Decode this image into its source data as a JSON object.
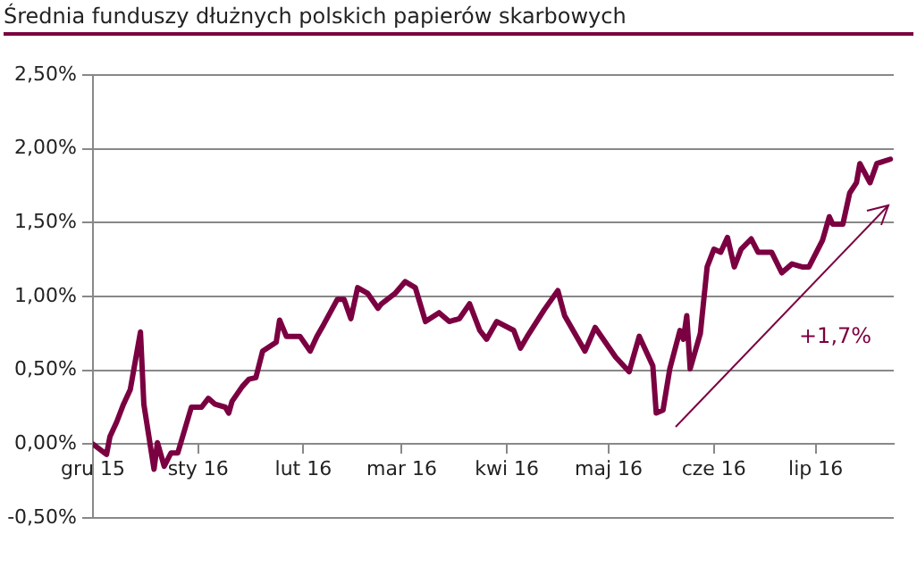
{
  "chart_data": {
    "type": "line",
    "title": "Średnia funduszy dłużnych polskich papierów skarbowych",
    "x": [
      "2015-12-01",
      "2015-12-05",
      "2015-12-06",
      "2015-12-08",
      "2015-12-10",
      "2015-12-12",
      "2015-12-15",
      "2015-12-16",
      "2015-12-19",
      "2015-12-20",
      "2015-12-22",
      "2015-12-24",
      "2015-12-26",
      "2015-12-30",
      "2016-01-02",
      "2016-01-04",
      "2016-01-06",
      "2016-01-09",
      "2016-01-10",
      "2016-01-11",
      "2016-01-14",
      "2016-01-16",
      "2016-01-18",
      "2016-01-20",
      "2016-01-24",
      "2016-01-25",
      "2016-01-27",
      "2016-01-31",
      "2016-02-03",
      "2016-02-05",
      "2016-02-07",
      "2016-02-11",
      "2016-02-13",
      "2016-02-15",
      "2016-02-17",
      "2016-02-20",
      "2016-02-23",
      "2016-02-24",
      "2016-02-28",
      "2016-03-02",
      "2016-03-05",
      "2016-03-08",
      "2016-03-12",
      "2016-03-15",
      "2016-03-18",
      "2016-03-21",
      "2016-03-24",
      "2016-03-26",
      "2016-03-29",
      "2016-04-03",
      "2016-04-05",
      "2016-04-07",
      "2016-04-12",
      "2016-04-16",
      "2016-04-18",
      "2016-04-24",
      "2016-04-27",
      "2016-05-03",
      "2016-05-07",
      "2016-05-10",
      "2016-05-14",
      "2016-05-15",
      "2016-05-17",
      "2016-05-19",
      "2016-05-22",
      "2016-05-23",
      "2016-05-24",
      "2016-05-25",
      "2016-05-28",
      "2016-05-30",
      "2016-06-01",
      "2016-06-03",
      "2016-06-05",
      "2016-06-07",
      "2016-06-09",
      "2016-06-12",
      "2016-06-14",
      "2016-06-18",
      "2016-06-21",
      "2016-06-24",
      "2016-06-27",
      "2016-06-29",
      "2016-07-03",
      "2016-07-05",
      "2016-07-06",
      "2016-07-09",
      "2016-07-11",
      "2016-07-13",
      "2016-07-14",
      "2016-07-17",
      "2016-07-19",
      "2016-07-23"
    ],
    "series": [
      {
        "color": "#7b0041",
        "values": [
          0,
          -0.07,
          0.05,
          0.15,
          0.27,
          0.37,
          0.76,
          0.27,
          -0.17,
          0.01,
          -0.15,
          -0.06,
          -0.06,
          0.25,
          0.25,
          0.31,
          0.27,
          0.25,
          0.21,
          0.29,
          0.39,
          0.44,
          0.45,
          0.63,
          0.69,
          0.84,
          0.73,
          0.73,
          0.63,
          0.73,
          0.81,
          0.98,
          0.98,
          0.85,
          1.06,
          1.02,
          0.92,
          0.95,
          1.02,
          1.1,
          1.06,
          0.83,
          0.89,
          0.83,
          0.85,
          0.95,
          0.77,
          0.71,
          0.83,
          0.77,
          0.65,
          0.73,
          0.91,
          1.04,
          0.87,
          0.63,
          0.79,
          0.59,
          0.49,
          0.73,
          0.53,
          0.21,
          0.23,
          0.51,
          0.77,
          0.71,
          0.87,
          0.51,
          0.75,
          1.2,
          1.32,
          1.3,
          1.4,
          1.2,
          1.32,
          1.39,
          1.3,
          1.3,
          1.16,
          1.22,
          1.2,
          1.2,
          1.38,
          1.54,
          1.49,
          1.49,
          1.7,
          1.77,
          1.9,
          1.77,
          1.9,
          1.93
        ]
      }
    ],
    "xlim": [
      "2015-12-01",
      "2016-07-24"
    ],
    "xticks": [
      {
        "value": "2015-12-01",
        "label": "gru 15"
      },
      {
        "value": "2016-01-01",
        "label": "sty 16"
      },
      {
        "value": "2016-02-01",
        "label": "lut 16"
      },
      {
        "value": "2016-03-01",
        "label": "mar 16"
      },
      {
        "value": "2016-04-01",
        "label": "kwi 16"
      },
      {
        "value": "2016-05-01",
        "label": "maj 16"
      },
      {
        "value": "2016-06-01",
        "label": "cze 16"
      },
      {
        "value": "2016-07-01",
        "label": "lip 16"
      }
    ],
    "ylim": [
      -0.5,
      2.5
    ],
    "yticks": [
      {
        "value": -0.5,
        "label": "-0,50%"
      },
      {
        "value": 0,
        "label": "0,00%"
      },
      {
        "value": 0.5,
        "label": "0,50%"
      },
      {
        "value": 1,
        "label": "1,00%"
      },
      {
        "value": 1.5,
        "label": "1,50%"
      },
      {
        "value": 2,
        "label": "2,00%"
      },
      {
        "value": 2.5,
        "label": "2,50%"
      }
    ],
    "grid": "y",
    "legend": false,
    "marker": "none",
    "line_style": "solid",
    "annotations": [
      "+1,7%"
    ]
  }
}
